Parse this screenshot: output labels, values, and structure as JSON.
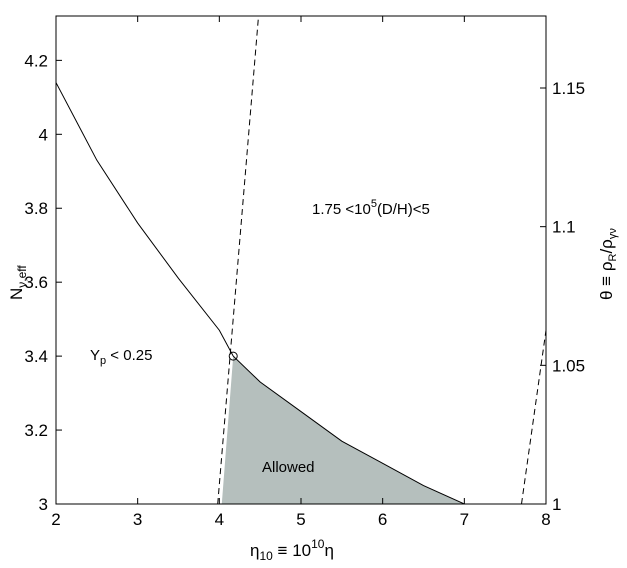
{
  "chart_data": {
    "type": "line",
    "x_axis": {
      "label_main": "η",
      "label_sub": "10",
      "label_mid": " ≡ 10",
      "label_sup": "10",
      "label_end": "η",
      "range": [
        2,
        8
      ],
      "ticks": [
        2,
        3,
        4,
        5,
        6,
        7,
        8
      ],
      "tick_labels": [
        "2",
        "3",
        "4",
        "5",
        "6",
        "7",
        "8"
      ]
    },
    "y_axis_left": {
      "label_main": "N",
      "label_sub": "ν,eff",
      "range": [
        3.0,
        4.32
      ],
      "ticks": [
        3.0,
        3.2,
        3.4,
        3.6,
        3.8,
        4.0,
        4.2
      ],
      "tick_labels": [
        "3",
        "3.2",
        "3.4",
        "3.6",
        "3.8",
        "4",
        "4.2"
      ]
    },
    "y_axis_right": {
      "label_a": "θ ≡ ρ",
      "label_sub1": "R",
      "label_b": "/ρ",
      "label_sub2": "γν",
      "ticks": [
        1.0,
        1.05,
        1.1,
        1.15
      ],
      "tick_labels": [
        "1",
        "1.05",
        "1.1",
        "1.15"
      ]
    },
    "series": [
      {
        "style": "solid",
        "x": [
          2.0,
          2.5,
          3.0,
          3.5,
          4.0,
          4.17,
          4.5,
          5.0,
          5.5,
          6.0,
          6.5,
          7.0
        ],
        "y": [
          4.14,
          3.93,
          3.76,
          3.61,
          3.47,
          3.4,
          3.33,
          3.25,
          3.17,
          3.11,
          3.05,
          3.0
        ]
      },
      {
        "style": "dashed",
        "x": [
          3.98,
          4.48
        ],
        "y": [
          3.0,
          4.32
        ]
      },
      {
        "style": "dashed",
        "x": [
          7.7,
          8.0
        ],
        "y": [
          3.0,
          3.47
        ]
      }
    ],
    "region": {
      "label": "Allowed",
      "color": "#b5bfbd",
      "polygon": [
        [
          4.03,
          3.0
        ],
        [
          4.17,
          3.4
        ],
        [
          4.5,
          3.33
        ],
        [
          5.0,
          3.25
        ],
        [
          5.5,
          3.17
        ],
        [
          6.0,
          3.11
        ],
        [
          6.5,
          3.05
        ],
        [
          6.98,
          3.0
        ]
      ]
    },
    "marker": {
      "x": 4.17,
      "y": 3.4,
      "shape": "open-circle"
    },
    "annotations": {
      "yp_main": "Y",
      "yp_sub": "p",
      "yp_rest": " < 0.25",
      "dh_a": "1.75 <10",
      "dh_sup": "5",
      "dh_b": "(D/H)<5"
    },
    "grid": false
  }
}
